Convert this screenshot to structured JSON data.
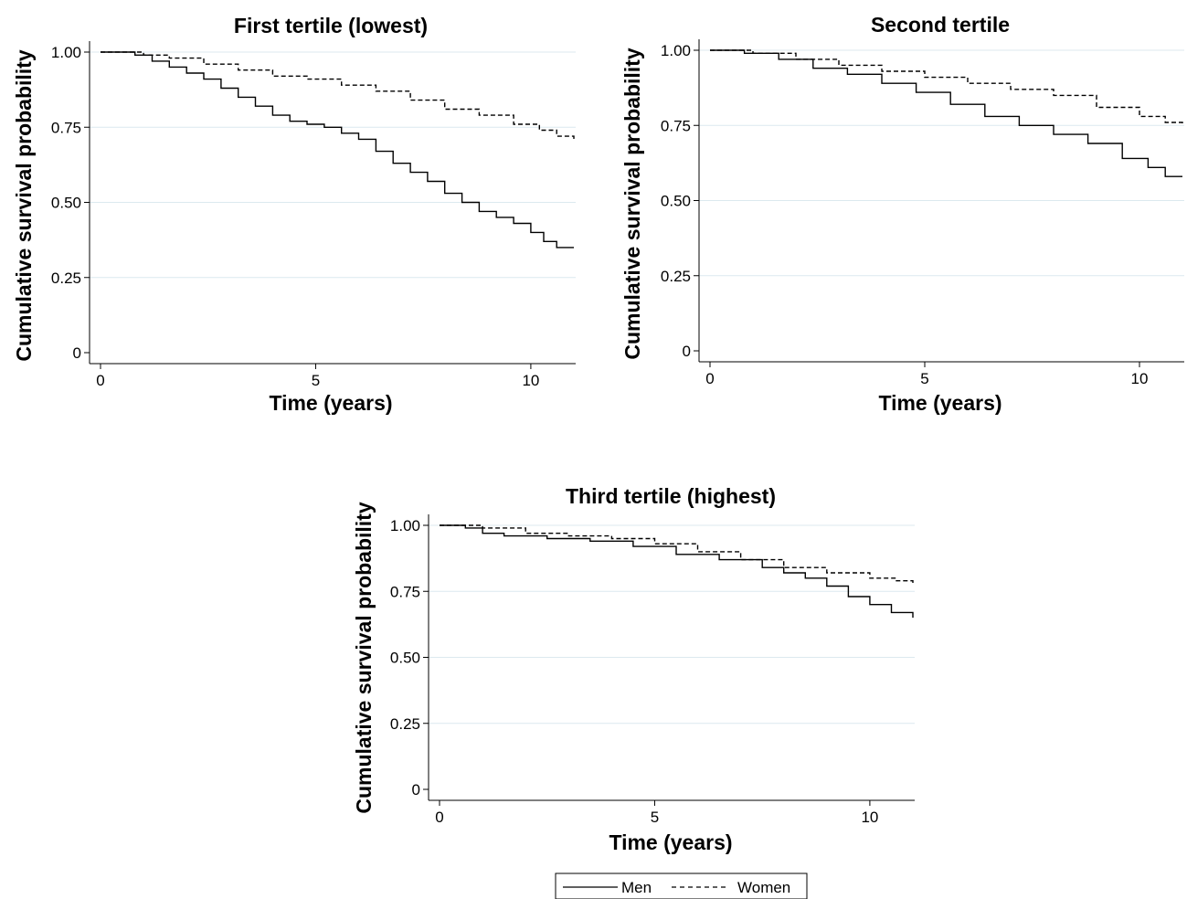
{
  "chart_data": [
    {
      "type": "line",
      "title": "First tertile (lowest)",
      "xlabel": "Time (years)",
      "ylabel": "Cumulative survival probability",
      "xlim": [
        0,
        11
      ],
      "ylim": [
        0,
        1
      ],
      "xticks": [
        "0",
        "5",
        "10"
      ],
      "yticks": [
        "0",
        "0.25",
        "0.50",
        "0.75",
        "1.00"
      ],
      "grid": "horizontal",
      "series": [
        {
          "name": "Men",
          "style": "solid",
          "x": [
            0,
            0.8,
            1.2,
            1.6,
            2.0,
            2.4,
            2.8,
            3.2,
            3.6,
            4.0,
            4.4,
            4.8,
            5.2,
            5.6,
            6.0,
            6.4,
            6.8,
            7.2,
            7.6,
            8.0,
            8.4,
            8.8,
            9.2,
            9.6,
            10.0,
            10.3,
            10.6,
            11.0
          ],
          "y": [
            1.0,
            0.99,
            0.97,
            0.95,
            0.93,
            0.91,
            0.88,
            0.85,
            0.82,
            0.79,
            0.77,
            0.76,
            0.75,
            0.73,
            0.71,
            0.67,
            0.63,
            0.6,
            0.57,
            0.53,
            0.5,
            0.47,
            0.45,
            0.43,
            0.4,
            0.37,
            0.35,
            0.35
          ]
        },
        {
          "name": "Women",
          "style": "dashed",
          "x": [
            0,
            1.0,
            1.6,
            2.4,
            3.2,
            4.0,
            4.8,
            5.6,
            6.4,
            7.2,
            8.0,
            8.8,
            9.6,
            10.2,
            10.6,
            11.0
          ],
          "y": [
            1.0,
            0.99,
            0.98,
            0.96,
            0.94,
            0.92,
            0.91,
            0.89,
            0.87,
            0.84,
            0.81,
            0.79,
            0.76,
            0.74,
            0.72,
            0.71
          ]
        }
      ]
    },
    {
      "type": "line",
      "title": "Second tertile",
      "xlabel": "Time (years)",
      "ylabel": "Cumulative survival probability",
      "xlim": [
        0,
        11
      ],
      "ylim": [
        0,
        1
      ],
      "xticks": [
        "0",
        "5",
        "10"
      ],
      "yticks": [
        "0",
        "0.25",
        "0.50",
        "0.75",
        "1.00"
      ],
      "grid": "horizontal",
      "series": [
        {
          "name": "Men",
          "style": "solid",
          "x": [
            0,
            0.8,
            1.6,
            2.4,
            3.2,
            4.0,
            4.8,
            5.6,
            6.4,
            7.2,
            8.0,
            8.8,
            9.6,
            10.2,
            10.6,
            11.0
          ],
          "y": [
            1.0,
            0.99,
            0.97,
            0.94,
            0.92,
            0.89,
            0.86,
            0.82,
            0.78,
            0.75,
            0.72,
            0.69,
            0.64,
            0.61,
            0.58,
            0.58
          ]
        },
        {
          "name": "Women",
          "style": "dashed",
          "x": [
            0,
            1.0,
            2.0,
            3.0,
            4.0,
            5.0,
            6.0,
            7.0,
            8.0,
            9.0,
            10.0,
            10.6,
            11.0
          ],
          "y": [
            1.0,
            0.99,
            0.97,
            0.95,
            0.93,
            0.91,
            0.89,
            0.87,
            0.85,
            0.81,
            0.78,
            0.76,
            0.75
          ]
        }
      ]
    },
    {
      "type": "line",
      "title": "Third tertile (highest)",
      "xlabel": "Time (years)",
      "ylabel": "Cumulative survival probability",
      "xlim": [
        0,
        11
      ],
      "ylim": [
        0,
        1
      ],
      "xticks": [
        "0",
        "5",
        "10"
      ],
      "yticks": [
        "0",
        "0.25",
        "0.50",
        "0.75",
        "1.00"
      ],
      "grid": "horizontal",
      "series": [
        {
          "name": "Men",
          "style": "solid",
          "x": [
            0,
            0.6,
            1.0,
            1.5,
            2.5,
            3.5,
            4.5,
            5.5,
            6.5,
            7.5,
            8.0,
            8.5,
            9.0,
            9.5,
            10.0,
            10.5,
            11.0
          ],
          "y": [
            1.0,
            0.99,
            0.97,
            0.96,
            0.95,
            0.94,
            0.92,
            0.89,
            0.87,
            0.84,
            0.82,
            0.8,
            0.77,
            0.73,
            0.7,
            0.67,
            0.65
          ]
        },
        {
          "name": "Women",
          "style": "dashed",
          "x": [
            0,
            1.0,
            2.0,
            3.0,
            4.0,
            5.0,
            6.0,
            7.0,
            8.0,
            9.0,
            10.0,
            10.6,
            11.0
          ],
          "y": [
            1.0,
            0.99,
            0.97,
            0.96,
            0.95,
            0.93,
            0.9,
            0.87,
            0.84,
            0.82,
            0.8,
            0.79,
            0.78
          ]
        }
      ]
    }
  ],
  "legend": {
    "placement": "bottom-center",
    "items": [
      {
        "label": "Men",
        "style": "solid"
      },
      {
        "label": "Women",
        "style": "dashed"
      }
    ]
  },
  "colors": {
    "line": "#000000",
    "grid": "#dce9ef",
    "axis": "#000000"
  }
}
